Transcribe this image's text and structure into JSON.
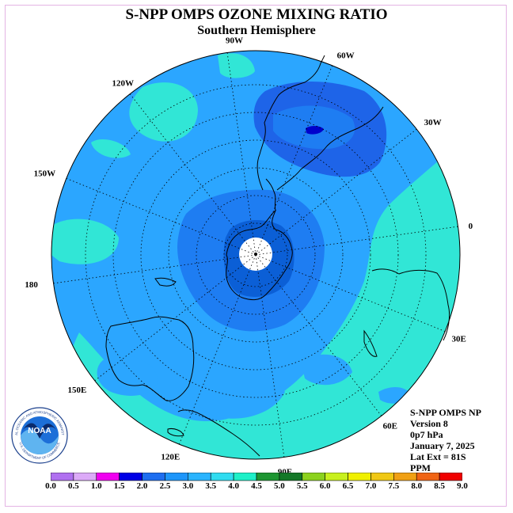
{
  "header": {
    "title": "S-NPP OMPS OZONE MIXING RATIO",
    "subtitle": "Southern Hemisphere"
  },
  "map": {
    "projection": "south-polar-stereographic",
    "longitude_labels": [
      "0",
      "30W",
      "60W",
      "90W",
      "120W",
      "150W",
      "180",
      "150E",
      "120E",
      "90E",
      "60E",
      "30E"
    ],
    "colors": {
      "background_field": "#2ba6ff",
      "inner_ring": "#1e7df2",
      "core": "#0b5fd6",
      "high_field": "#31e6d6",
      "south_america_max": "#1e64e8",
      "peak": "#0000cc",
      "pole_gap": "#ffffff",
      "coastline": "#000000",
      "graticule": "#000000"
    }
  },
  "info": {
    "line1": "S-NPP OMPS NP",
    "line2": "Version 8",
    "line3": "0p7 hPa",
    "line4": "January 7, 2025",
    "line5": "Lat Ext = 81S",
    "line6": "PPM"
  },
  "logo": {
    "text": "NOAA",
    "ring_text": "NATIONAL OCEANIC AND ATMOSPHERIC ADMINISTRATION",
    "ring_text_bottom": "U.S. DEPARTMENT OF COMMERCE"
  },
  "colorbar": {
    "labels": [
      "0.0",
      "0.5",
      "1.0",
      "1.5",
      "2.0",
      "2.5",
      "3.0",
      "3.5",
      "4.0",
      "4.5",
      "5.0",
      "5.5",
      "6.0",
      "6.5",
      "7.0",
      "7.5",
      "8.0",
      "8.5",
      "9.0"
    ],
    "colors": [
      "#b070f0",
      "#dcaaf8",
      "#f000f0",
      "#0000e6",
      "#1e6ef0",
      "#1e96fa",
      "#2ab4ff",
      "#30dcf0",
      "#1ef0c8",
      "#1e9632",
      "#147828",
      "#8cd21e",
      "#c8f01e",
      "#f0f000",
      "#f0c814",
      "#f0a014",
      "#f06414",
      "#f00000",
      "#8c5a3c"
    ]
  }
}
